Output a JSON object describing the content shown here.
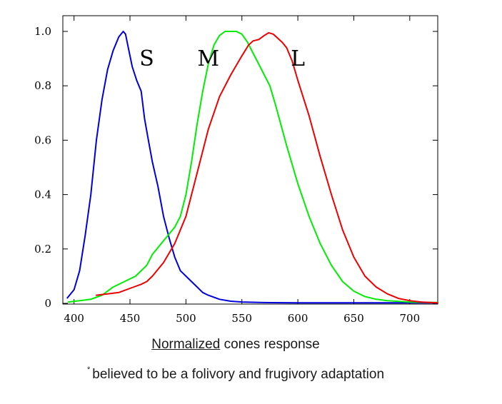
{
  "chart_data": {
    "type": "line",
    "title": "",
    "xlabel_underlined": "Normalized",
    "xlabel_rest": " cones response",
    "footnote_mark": "*",
    "footnote": "believed to be a folivory and frugivory adaptation",
    "xlim": [
      390,
      725
    ],
    "ylim": [
      0,
      1.0
    ],
    "xticks": [
      400,
      450,
      500,
      550,
      600,
      650,
      700
    ],
    "yticks": [
      0,
      0.2,
      0.4,
      0.6,
      0.8,
      1.0
    ],
    "ytick_labels": [
      "0",
      "0.2",
      "0.4",
      "0.6",
      "0.8",
      "1.0"
    ],
    "grid": false,
    "series": [
      {
        "name": "S",
        "color": "#0000dd",
        "x": [
          394,
          400,
          405,
          410,
          415,
          420,
          425,
          430,
          435,
          440,
          444,
          446,
          448,
          452,
          456,
          460,
          463,
          466,
          470,
          475,
          480,
          485,
          490,
          495,
          500,
          505,
          510,
          515,
          520,
          530,
          540,
          550,
          560,
          570,
          600,
          650,
          700,
          725
        ],
        "y": [
          0.02,
          0.05,
          0.12,
          0.25,
          0.4,
          0.6,
          0.75,
          0.86,
          0.93,
          0.98,
          1.0,
          0.99,
          0.95,
          0.87,
          0.82,
          0.78,
          0.68,
          0.61,
          0.52,
          0.43,
          0.32,
          0.24,
          0.17,
          0.12,
          0.1,
          0.08,
          0.06,
          0.04,
          0.03,
          0.015,
          0.008,
          0.005,
          0.004,
          0.003,
          0.002,
          0.002,
          0.002,
          0.002
        ]
      },
      {
        "name": "M",
        "color": "#00ee00",
        "x": [
          395,
          405,
          415,
          425,
          435,
          445,
          455,
          465,
          470,
          480,
          490,
          495,
          500,
          505,
          510,
          515,
          520,
          525,
          530,
          535,
          540,
          545,
          550,
          555,
          560,
          565,
          570,
          575,
          580,
          590,
          600,
          610,
          620,
          630,
          640,
          650,
          660,
          670,
          680,
          700,
          725
        ],
        "y": [
          0.005,
          0.01,
          0.015,
          0.03,
          0.06,
          0.08,
          0.1,
          0.14,
          0.18,
          0.23,
          0.28,
          0.32,
          0.4,
          0.52,
          0.66,
          0.78,
          0.88,
          0.95,
          0.985,
          1.0,
          1.0,
          1.0,
          0.99,
          0.96,
          0.92,
          0.88,
          0.84,
          0.8,
          0.73,
          0.58,
          0.44,
          0.32,
          0.22,
          0.14,
          0.08,
          0.045,
          0.025,
          0.015,
          0.01,
          0.005,
          0.003
        ]
      },
      {
        "name": "L",
        "color": "#ee0000",
        "x": [
          420,
          430,
          440,
          450,
          460,
          465,
          470,
          480,
          490,
          500,
          510,
          520,
          530,
          540,
          550,
          556,
          560,
          565,
          570,
          574,
          578,
          582,
          586,
          590,
          595,
          600,
          610,
          620,
          630,
          640,
          650,
          660,
          670,
          680,
          690,
          700,
          710,
          720,
          725
        ],
        "y": [
          0.03,
          0.035,
          0.04,
          0.055,
          0.07,
          0.08,
          0.1,
          0.15,
          0.22,
          0.32,
          0.48,
          0.64,
          0.76,
          0.84,
          0.91,
          0.95,
          0.965,
          0.97,
          0.985,
          0.995,
          0.99,
          0.975,
          0.96,
          0.94,
          0.89,
          0.82,
          0.69,
          0.54,
          0.4,
          0.27,
          0.17,
          0.1,
          0.06,
          0.035,
          0.018,
          0.01,
          0.005,
          0.003,
          0.002
        ]
      }
    ],
    "annotations": [
      {
        "text": "S",
        "x": 465,
        "y": 0.9
      },
      {
        "text": "M",
        "x": 520,
        "y": 0.9
      },
      {
        "text": "L",
        "x": 600,
        "y": 0.9
      }
    ]
  }
}
